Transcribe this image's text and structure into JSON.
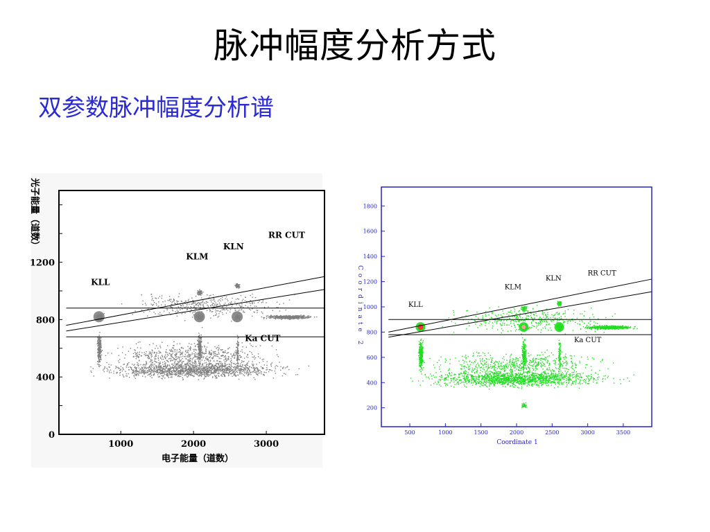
{
  "slide": {
    "title": "脉冲幅度分析方式",
    "subtitle": "双参数脉冲幅度分析谱"
  },
  "chart_data": [
    {
      "type": "scatter",
      "title": "",
      "xlabel": "电子能量（道数）",
      "ylabel": "光子能量（道数）",
      "xlim": [
        150,
        3800
      ],
      "ylim": [
        0,
        1700
      ],
      "xticks": [
        1000,
        2000,
        3000
      ],
      "yticks": [
        0,
        400,
        800,
        1200
      ],
      "point_color": "#7f7f7f",
      "frame_color": "#000000",
      "annotations": [
        {
          "text": "KLL",
          "x": 720,
          "y": 1040
        },
        {
          "text": "KLM",
          "x": 2050,
          "y": 1220
        },
        {
          "text": "KLN",
          "x": 2550,
          "y": 1290
        },
        {
          "text": "RR CUT",
          "x": 3280,
          "y": 1370
        },
        {
          "text": "Ka CUT",
          "x": 2950,
          "y": 650
        }
      ],
      "series": [
        {
          "values": [
            {
              "x": 700,
              "y": 820,
              "n": 300
            },
            {
              "x": 2080,
              "y": 820,
              "n": 200
            },
            {
              "x": 2600,
              "y": 820,
              "n": 120
            },
            {
              "x": 3300,
              "y": 820,
              "n": 500
            },
            {
              "x": 700,
              "y": 590,
              "n": 250
            },
            {
              "x": 2080,
              "y": 600,
              "n": 180
            },
            {
              "x": 2600,
              "y": 580,
              "n": 80
            },
            {
              "x": 2000,
              "y": 450,
              "n": 1400
            },
            {
              "x": 2000,
              "y": 550,
              "n": 600
            },
            {
              "x": 2080,
              "y": 990,
              "n": 60
            },
            {
              "x": 2600,
              "y": 1040,
              "n": 60
            },
            {
              "x": 2200,
              "y": 900,
              "n": 400
            }
          ]
        }
      ]
    },
    {
      "type": "scatter",
      "title": "",
      "xlabel": "Coordinate 1",
      "ylabel": "Coordinate 2",
      "xlim": [
        100,
        3900
      ],
      "ylim": [
        50,
        1950
      ],
      "xticks": [
        500,
        1000,
        1500,
        2000,
        2500,
        3000,
        3500
      ],
      "yticks": [
        200,
        400,
        600,
        800,
        1000,
        1200,
        1400,
        1600,
        1800
      ],
      "point_color": "#22dd22",
      "frame_color": "#2222cc",
      "annotations": [
        {
          "text": "KLL",
          "x": 580,
          "y": 1000
        },
        {
          "text": "KLM",
          "x": 1950,
          "y": 1140
        },
        {
          "text": "KLN",
          "x": 2520,
          "y": 1210
        },
        {
          "text": "RR CUT",
          "x": 3200,
          "y": 1250
        },
        {
          "text": "Ka CUT",
          "x": 3000,
          "y": 720
        }
      ],
      "series": [
        {
          "values": [
            {
              "x": 650,
              "y": 840,
              "n": 300
            },
            {
              "x": 2100,
              "y": 840,
              "n": 200
            },
            {
              "x": 2600,
              "y": 840,
              "n": 120
            },
            {
              "x": 3300,
              "y": 840,
              "n": 500
            },
            {
              "x": 650,
              "y": 620,
              "n": 300
            },
            {
              "x": 2100,
              "y": 620,
              "n": 200
            },
            {
              "x": 2600,
              "y": 620,
              "n": 80
            },
            {
              "x": 2000,
              "y": 430,
              "n": 1400
            },
            {
              "x": 2000,
              "y": 540,
              "n": 600
            },
            {
              "x": 2100,
              "y": 990,
              "n": 60
            },
            {
              "x": 2600,
              "y": 1030,
              "n": 60
            },
            {
              "x": 2200,
              "y": 900,
              "n": 400
            },
            {
              "x": 2100,
              "y": 220,
              "n": 40
            }
          ]
        }
      ]
    }
  ]
}
